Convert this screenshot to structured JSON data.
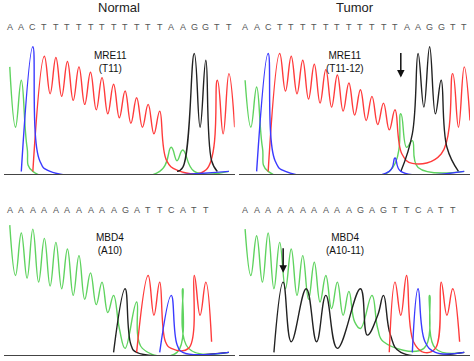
{
  "chart_data": [
    {
      "type": "line",
      "title": "Normal",
      "label": "MRE11",
      "sublabel": "(T11)",
      "sequence": "AACTTTTTTTTTTTAAGGTT",
      "xlim": [
        -0.5,
        19.5
      ],
      "ylim": [
        0,
        1.15
      ],
      "xticks": [],
      "yticks": [],
      "tick_labels": false,
      "grid": false,
      "series": [
        {
          "color": "#5fd35f",
          "x": [
            0,
            0.5,
            1,
            1.5,
            2,
            13,
            14,
            14.5,
            15,
            16,
            19
          ],
          "values": [
            0.8,
            0.35,
            0.7,
            0.2,
            0.02,
            0.02,
            0.2,
            0.1,
            0.18,
            0.02,
            0.02
          ]
        },
        {
          "color": "#ff3b3b",
          "x": [
            2,
            3,
            3.5,
            4,
            4.5,
            5,
            5.5,
            6,
            6.5,
            7,
            7.5,
            8,
            8.5,
            9,
            9.5,
            10,
            10.5,
            11,
            11.5,
            12,
            12.5,
            13,
            13.6,
            14.5,
            17,
            18,
            18.5,
            19,
            19.5
          ],
          "values": [
            0.02,
            0.88,
            0.6,
            0.87,
            0.58,
            0.84,
            0.55,
            0.8,
            0.52,
            0.76,
            0.48,
            0.72,
            0.45,
            0.67,
            0.42,
            0.62,
            0.38,
            0.57,
            0.35,
            0.52,
            0.3,
            0.47,
            0.1,
            0.03,
            0.03,
            0.7,
            0.3,
            0.75,
            0.35
          ]
        },
        {
          "color": "#222222",
          "x": [
            14.5,
            15,
            16,
            16.5,
            17,
            17.5,
            18
          ],
          "values": [
            0.02,
            0.05,
            0.9,
            0.35,
            0.85,
            0.1,
            0.02
          ]
        },
        {
          "color": "#3a3aff",
          "x": [
            1,
            2,
            2.6,
            3.5,
            19
          ],
          "values": [
            0.02,
            0.95,
            0.1,
            0.02,
            0.02
          ]
        }
      ]
    },
    {
      "type": "line",
      "title": "Tumor",
      "label": "MRE11",
      "sublabel": "(T11-12)",
      "sequence": "AACTTTTTTTTTTTAAGGTT",
      "xlim": [
        -0.5,
        19.5
      ],
      "ylim": [
        0,
        1.15
      ],
      "xticks": [],
      "yticks": [],
      "tick_labels": false,
      "grid": false,
      "arrow": {
        "x": 13.5,
        "y": 0.72
      },
      "series": [
        {
          "color": "#5fd35f",
          "x": [
            0,
            0.5,
            1,
            1.5,
            2,
            12.5,
            13.5,
            14,
            14.5,
            15,
            19
          ],
          "values": [
            0.7,
            0.35,
            0.65,
            0.2,
            0.02,
            0.02,
            0.45,
            0.2,
            0.25,
            0.05,
            0.02
          ]
        },
        {
          "color": "#ff3b3b",
          "x": [
            2,
            3,
            3.5,
            4,
            4.5,
            5,
            5.5,
            6,
            6.5,
            7,
            7.5,
            8,
            8.5,
            9,
            9.5,
            10,
            10.5,
            11,
            11.5,
            12,
            12.5,
            13,
            13.6,
            14.5,
            17,
            18,
            18.5,
            19,
            19.5
          ],
          "values": [
            0.02,
            0.9,
            0.62,
            0.88,
            0.6,
            0.85,
            0.56,
            0.82,
            0.53,
            0.78,
            0.5,
            0.74,
            0.47,
            0.68,
            0.44,
            0.63,
            0.4,
            0.58,
            0.37,
            0.53,
            0.33,
            0.48,
            0.15,
            0.08,
            0.15,
            0.75,
            0.35,
            0.8,
            0.4
          ]
        },
        {
          "color": "#222222",
          "x": [
            13.5,
            14.5,
            15,
            15.5,
            16,
            16.5,
            17,
            17.5,
            18.5
          ],
          "values": [
            0.02,
            0.3,
            0.9,
            0.5,
            0.95,
            0.45,
            0.7,
            0.2,
            0.02
          ]
        },
        {
          "color": "#3a3aff",
          "x": [
            1,
            2,
            2.6,
            3.5,
            12.5,
            13,
            13.5,
            19
          ],
          "values": [
            0.02,
            0.9,
            0.1,
            0.02,
            0.02,
            0.12,
            0.02,
            0.02
          ]
        }
      ]
    },
    {
      "type": "line",
      "label": "MBD4",
      "sublabel": "(A10)",
      "sequence": "AAAAAAAAAAGATTCATT",
      "xlim": [
        -0.5,
        19.5
      ],
      "ylim": [
        0,
        1.15
      ],
      "xticks": [],
      "yticks": [],
      "tick_labels": false,
      "grid": false,
      "series": [
        {
          "color": "#5fd35f",
          "x": [
            0,
            0.5,
            1,
            1.5,
            2,
            2.5,
            3,
            3.5,
            4,
            4.5,
            5,
            5.5,
            6,
            6.5,
            7,
            7.5,
            8,
            8.5,
            9,
            9.5,
            10,
            11,
            11.5,
            14.5,
            15,
            15.5,
            19
          ],
          "values": [
            0.98,
            0.6,
            0.92,
            0.58,
            0.95,
            0.55,
            0.88,
            0.52,
            0.85,
            0.5,
            0.8,
            0.45,
            0.75,
            0.42,
            0.62,
            0.38,
            0.55,
            0.32,
            0.45,
            0.2,
            0.05,
            0.4,
            0.05,
            0.02,
            0.5,
            0.05,
            0.02
          ]
        },
        {
          "color": "#222222",
          "x": [
            9,
            10,
            10.5,
            11,
            19
          ],
          "values": [
            0.02,
            0.5,
            0.08,
            0.02,
            0.02
          ]
        },
        {
          "color": "#ff3b3b",
          "x": [
            11,
            12,
            12.5,
            13,
            13.5,
            14,
            15.5,
            16,
            16.5,
            17,
            17.5
          ],
          "values": [
            0.02,
            0.6,
            0.3,
            0.55,
            0.1,
            0.05,
            0.05,
            0.6,
            0.3,
            0.55,
            0.1
          ]
        },
        {
          "color": "#3a3aff",
          "x": [
            13,
            14,
            14.5,
            15,
            19
          ],
          "values": [
            0.02,
            0.45,
            0.08,
            0.02,
            0.02
          ]
        }
      ]
    },
    {
      "type": "line",
      "label": "MBD4",
      "sublabel": "(A10-11)",
      "sequence": "AAAAAAAAAAGAGTTCATT",
      "xlim": [
        -0.5,
        19.5
      ],
      "ylim": [
        0,
        1.15
      ],
      "xticks": [],
      "yticks": [],
      "tick_labels": false,
      "grid": false,
      "arrow": {
        "x": 3.3,
        "y": 0.62
      },
      "series": [
        {
          "color": "#5fd35f",
          "x": [
            0,
            0.5,
            1,
            1.5,
            2,
            2.5,
            3,
            3.5,
            4,
            4.5,
            5,
            5.5,
            6,
            6.5,
            7,
            7.5,
            8,
            8.5,
            9,
            9.5,
            10,
            11,
            11.5,
            12,
            15.5,
            16,
            16.5,
            19
          ],
          "values": [
            0.95,
            0.6,
            0.9,
            0.55,
            0.92,
            0.5,
            0.85,
            0.5,
            0.8,
            0.45,
            0.75,
            0.42,
            0.7,
            0.4,
            0.6,
            0.35,
            0.55,
            0.3,
            0.48,
            0.25,
            0.2,
            0.45,
            0.2,
            0.1,
            0.05,
            0.45,
            0.05,
            0.02
          ]
        },
        {
          "color": "#222222",
          "x": [
            2.5,
            3.3,
            4,
            5.3,
            6.2,
            7,
            8,
            10,
            10.6,
            11.5,
            12,
            12.6,
            13.5,
            19
          ],
          "values": [
            0.02,
            0.55,
            0.1,
            0.5,
            0.1,
            0.45,
            0.05,
            0.5,
            0.15,
            0.3,
            0.45,
            0.15,
            0.02,
            0.02
          ]
        },
        {
          "color": "#ff3b3b",
          "x": [
            12.5,
            13,
            13.5,
            14,
            14.6,
            15.5,
            16.5,
            17,
            17.5,
            18,
            18.6
          ],
          "values": [
            0.02,
            0.55,
            0.3,
            0.6,
            0.1,
            0.02,
            0.05,
            0.55,
            0.3,
            0.5,
            0.1
          ]
        },
        {
          "color": "#3a3aff",
          "x": [
            14.5,
            15,
            15.6,
            16.5,
            19
          ],
          "values": [
            0.02,
            0.5,
            0.1,
            0.02,
            0.02
          ]
        }
      ]
    }
  ]
}
